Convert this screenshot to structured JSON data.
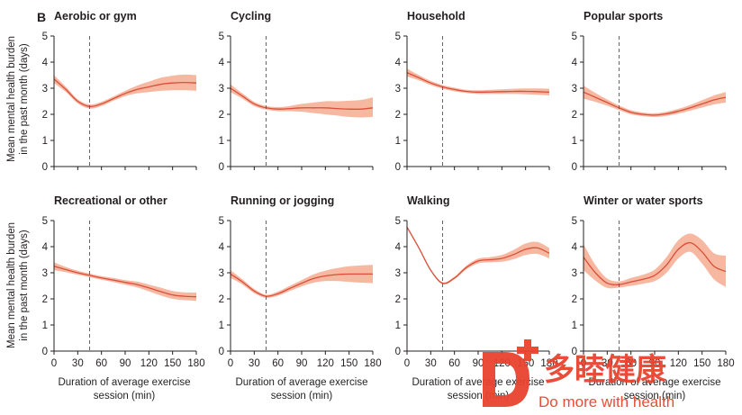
{
  "figure": {
    "panel_letter": "B",
    "ylabel_line1": "Mean mental health burden",
    "ylabel_line2": "in the past month (days)",
    "xlabel_line1": "Duration of average exercise",
    "xlabel_line2": "session (min)"
  },
  "watermark": {
    "cn_text": "多睦健康",
    "en_text": "Do more with health"
  },
  "colors": {
    "band": "#f7b8a2",
    "line": "#d94f3a",
    "ref_line": "#555555",
    "axis": "#231f20",
    "watermark": "#e8432e"
  },
  "chart_data": [
    {
      "type": "line",
      "title": "Aerobic or gym",
      "xlim": [
        0,
        180
      ],
      "ylim": [
        0,
        5
      ],
      "xticks": [
        0,
        30,
        60,
        90,
        120,
        150,
        180
      ],
      "yticks": [
        0,
        1,
        2,
        3,
        4,
        5
      ],
      "reference_x": 45,
      "x": [
        0,
        15,
        30,
        45,
        60,
        75,
        90,
        105,
        120,
        135,
        150,
        165,
        180
      ],
      "y": [
        3.35,
        2.95,
        2.5,
        2.3,
        2.4,
        2.6,
        2.8,
        2.95,
        3.05,
        3.15,
        3.2,
        3.22,
        3.2
      ],
      "lower": [
        3.2,
        2.85,
        2.42,
        2.22,
        2.32,
        2.52,
        2.7,
        2.8,
        2.85,
        2.9,
        2.92,
        2.92,
        2.9
      ],
      "upper": [
        3.5,
        3.05,
        2.58,
        2.38,
        2.48,
        2.68,
        2.9,
        3.1,
        3.25,
        3.4,
        3.48,
        3.52,
        3.5
      ]
    },
    {
      "type": "line",
      "title": "Cycling",
      "xlim": [
        0,
        180
      ],
      "ylim": [
        0,
        5
      ],
      "xticks": [
        0,
        30,
        60,
        90,
        120,
        150,
        180
      ],
      "yticks": [
        0,
        1,
        2,
        3,
        4,
        5
      ],
      "reference_x": 45,
      "x": [
        0,
        15,
        30,
        45,
        60,
        75,
        90,
        105,
        120,
        135,
        150,
        165,
        180
      ],
      "y": [
        3.0,
        2.7,
        2.4,
        2.25,
        2.2,
        2.22,
        2.25,
        2.25,
        2.25,
        2.22,
        2.2,
        2.2,
        2.25
      ],
      "lower": [
        2.85,
        2.6,
        2.32,
        2.18,
        2.12,
        2.12,
        2.1,
        2.05,
        2.0,
        1.95,
        1.9,
        1.88,
        1.9
      ],
      "upper": [
        3.15,
        2.8,
        2.48,
        2.32,
        2.28,
        2.32,
        2.4,
        2.45,
        2.5,
        2.5,
        2.52,
        2.55,
        2.65
      ]
    },
    {
      "type": "line",
      "title": "Household",
      "xlim": [
        0,
        180
      ],
      "ylim": [
        0,
        5
      ],
      "xticks": [
        0,
        30,
        60,
        90,
        120,
        150,
        180
      ],
      "yticks": [
        0,
        1,
        2,
        3,
        4,
        5
      ],
      "reference_x": 45,
      "x": [
        0,
        15,
        30,
        45,
        60,
        75,
        90,
        105,
        120,
        135,
        150,
        165,
        180
      ],
      "y": [
        3.6,
        3.4,
        3.2,
        3.05,
        2.95,
        2.88,
        2.85,
        2.86,
        2.87,
        2.88,
        2.88,
        2.87,
        2.85
      ],
      "lower": [
        3.45,
        3.3,
        3.12,
        2.98,
        2.88,
        2.82,
        2.78,
        2.78,
        2.78,
        2.78,
        2.77,
        2.75,
        2.72
      ],
      "upper": [
        3.75,
        3.5,
        3.28,
        3.12,
        3.02,
        2.94,
        2.92,
        2.94,
        2.96,
        2.98,
        2.99,
        2.99,
        2.98
      ]
    },
    {
      "type": "line",
      "title": "Popular sports",
      "xlim": [
        0,
        180
      ],
      "ylim": [
        0,
        5
      ],
      "xticks": [
        0,
        30,
        60,
        90,
        120,
        150,
        180
      ],
      "yticks": [
        0,
        1,
        2,
        3,
        4,
        5
      ],
      "reference_x": 45,
      "x": [
        0,
        15,
        30,
        45,
        60,
        75,
        90,
        105,
        120,
        135,
        150,
        165,
        180
      ],
      "y": [
        2.85,
        2.65,
        2.45,
        2.25,
        2.08,
        2.0,
        1.97,
        2.02,
        2.12,
        2.25,
        2.4,
        2.55,
        2.65
      ],
      "lower": [
        2.6,
        2.48,
        2.33,
        2.16,
        2.0,
        1.93,
        1.9,
        1.94,
        2.03,
        2.14,
        2.26,
        2.38,
        2.45
      ],
      "upper": [
        3.1,
        2.82,
        2.57,
        2.34,
        2.16,
        2.07,
        2.04,
        2.1,
        2.21,
        2.36,
        2.54,
        2.72,
        2.85
      ]
    },
    {
      "type": "line",
      "title": "Recreational or other",
      "xlim": [
        0,
        180
      ],
      "ylim": [
        0,
        5
      ],
      "xticks": [
        0,
        30,
        60,
        90,
        120,
        150,
        180
      ],
      "yticks": [
        0,
        1,
        2,
        3,
        4,
        5
      ],
      "reference_x": 45,
      "x": [
        0,
        15,
        30,
        45,
        60,
        75,
        90,
        105,
        120,
        135,
        150,
        165,
        180
      ],
      "y": [
        3.25,
        3.12,
        3.0,
        2.9,
        2.8,
        2.72,
        2.63,
        2.55,
        2.42,
        2.28,
        2.15,
        2.1,
        2.08
      ],
      "lower": [
        3.1,
        3.02,
        2.92,
        2.83,
        2.73,
        2.64,
        2.54,
        2.44,
        2.29,
        2.13,
        2.0,
        1.95,
        1.92
      ],
      "upper": [
        3.4,
        3.22,
        3.08,
        2.97,
        2.87,
        2.8,
        2.72,
        2.66,
        2.55,
        2.43,
        2.3,
        2.25,
        2.24
      ]
    },
    {
      "type": "line",
      "title": "Running or jogging",
      "xlim": [
        0,
        180
      ],
      "ylim": [
        0,
        5
      ],
      "xticks": [
        0,
        30,
        60,
        90,
        120,
        150,
        180
      ],
      "yticks": [
        0,
        1,
        2,
        3,
        4,
        5
      ],
      "reference_x": 45,
      "x": [
        0,
        15,
        30,
        45,
        60,
        75,
        90,
        105,
        120,
        135,
        150,
        165,
        180
      ],
      "y": [
        2.95,
        2.65,
        2.3,
        2.1,
        2.2,
        2.4,
        2.6,
        2.78,
        2.88,
        2.93,
        2.95,
        2.95,
        2.95
      ],
      "lower": [
        2.8,
        2.55,
        2.22,
        2.04,
        2.12,
        2.3,
        2.48,
        2.62,
        2.68,
        2.68,
        2.65,
        2.62,
        2.6
      ],
      "upper": [
        3.1,
        2.75,
        2.38,
        2.16,
        2.28,
        2.5,
        2.72,
        2.94,
        3.08,
        3.18,
        3.25,
        3.28,
        3.3
      ]
    },
    {
      "type": "line",
      "title": "Walking",
      "xlim": [
        0,
        180
      ],
      "ylim": [
        0,
        5
      ],
      "xticks": [
        0,
        30,
        60,
        90,
        120,
        150,
        180
      ],
      "yticks": [
        0,
        1,
        2,
        3,
        4,
        5
      ],
      "reference_x": 45,
      "x": [
        0,
        15,
        30,
        45,
        60,
        75,
        90,
        105,
        120,
        135,
        150,
        165,
        180
      ],
      "y": [
        4.75,
        3.95,
        3.1,
        2.6,
        2.8,
        3.2,
        3.45,
        3.5,
        3.55,
        3.7,
        3.9,
        3.95,
        3.75
      ],
      "lower": [
        4.72,
        3.92,
        3.07,
        2.56,
        2.75,
        3.13,
        3.36,
        3.4,
        3.42,
        3.52,
        3.68,
        3.72,
        3.55
      ],
      "upper": [
        4.78,
        3.98,
        3.13,
        2.64,
        2.85,
        3.27,
        3.54,
        3.6,
        3.68,
        3.88,
        4.12,
        4.18,
        3.95
      ]
    },
    {
      "type": "line",
      "title": "Winter or water sports",
      "xlim": [
        0,
        180
      ],
      "ylim": [
        0,
        5
      ],
      "xticks": [
        0,
        30,
        60,
        90,
        120,
        150,
        180
      ],
      "yticks": [
        0,
        1,
        2,
        3,
        4,
        5
      ],
      "reference_x": 45,
      "x": [
        0,
        15,
        30,
        45,
        60,
        75,
        90,
        105,
        120,
        135,
        150,
        165,
        180
      ],
      "y": [
        3.6,
        3.0,
        2.6,
        2.55,
        2.65,
        2.75,
        2.9,
        3.3,
        3.9,
        4.15,
        3.8,
        3.25,
        3.05
      ],
      "lower": [
        3.1,
        2.7,
        2.42,
        2.43,
        2.5,
        2.58,
        2.68,
        3.0,
        3.55,
        3.8,
        3.35,
        2.75,
        2.45
      ],
      "upper": [
        4.1,
        3.3,
        2.78,
        2.67,
        2.8,
        2.92,
        3.12,
        3.6,
        4.25,
        4.5,
        4.25,
        3.75,
        3.65
      ]
    }
  ]
}
